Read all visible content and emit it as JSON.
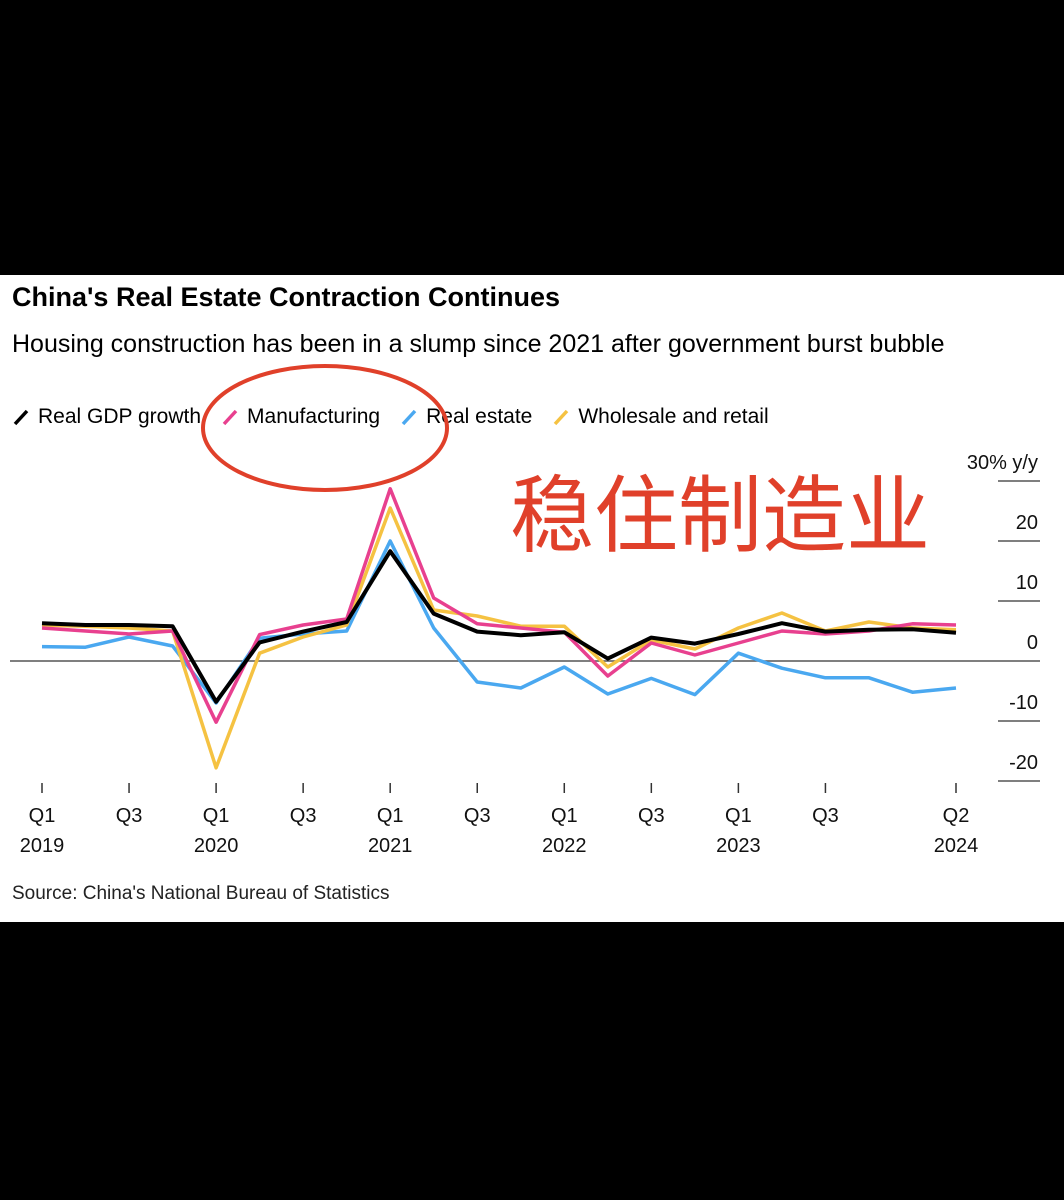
{
  "chart_data": {
    "type": "line",
    "title": "China's Real Estate Contraction Continues",
    "subtitle": "Housing construction has been in a slump since 2021 after government burst bubble",
    "source": "Source: China's National Bureau of Statistics",
    "annotation": "稳住制造业",
    "categories": [
      "Q1 2019",
      null,
      "Q3",
      null,
      "Q1 2020",
      null,
      "Q3",
      null,
      "Q1 2021",
      null,
      "Q3",
      null,
      "Q1 2022",
      null,
      "Q3",
      null,
      "Q1 2023",
      null,
      "Q3",
      null,
      null,
      "Q2 2024"
    ],
    "series": [
      {
        "name": "Real GDP growth",
        "color": "#000000",
        "values": [
          6.3,
          6.0,
          6.0,
          5.8,
          -6.8,
          3.1,
          4.9,
          6.5,
          18.3,
          7.9,
          4.9,
          4.3,
          4.8,
          0.4,
          3.9,
          2.9,
          4.5,
          6.3,
          4.9,
          5.2,
          5.3,
          4.7
        ]
      },
      {
        "name": "Manufacturing",
        "color": "#e8408f",
        "values": [
          5.5,
          5.0,
          4.5,
          5.0,
          -10.2,
          4.4,
          6.0,
          7.0,
          28.7,
          10.5,
          6.2,
          5.5,
          4.8,
          -2.5,
          3.0,
          1.0,
          3.0,
          5.0,
          4.5,
          5.0,
          6.2,
          6.0
        ]
      },
      {
        "name": "Real estate",
        "color": "#4aa8f0",
        "values": [
          2.4,
          2.3,
          4.0,
          2.5,
          -7.0,
          3.8,
          4.5,
          5.0,
          20.0,
          5.5,
          -3.5,
          -4.5,
          -1.0,
          -5.5,
          -2.9,
          -5.6,
          1.3,
          -1.2,
          -2.8,
          -2.8,
          -5.2,
          -4.5
        ]
      },
      {
        "name": "Wholesale and retail",
        "color": "#f5c242",
        "values": [
          6.0,
          5.8,
          5.5,
          5.0,
          -17.8,
          1.3,
          4.0,
          6.0,
          25.5,
          8.5,
          7.5,
          5.8,
          5.8,
          -1.0,
          3.5,
          2.0,
          5.5,
          8.0,
          5.0,
          6.5,
          5.5,
          5.2
        ]
      }
    ],
    "ylim": [
      -20,
      30
    ],
    "yticks": [
      {
        "value": 30,
        "label": "30% y/y"
      },
      20,
      10,
      0,
      -10,
      -20
    ]
  }
}
